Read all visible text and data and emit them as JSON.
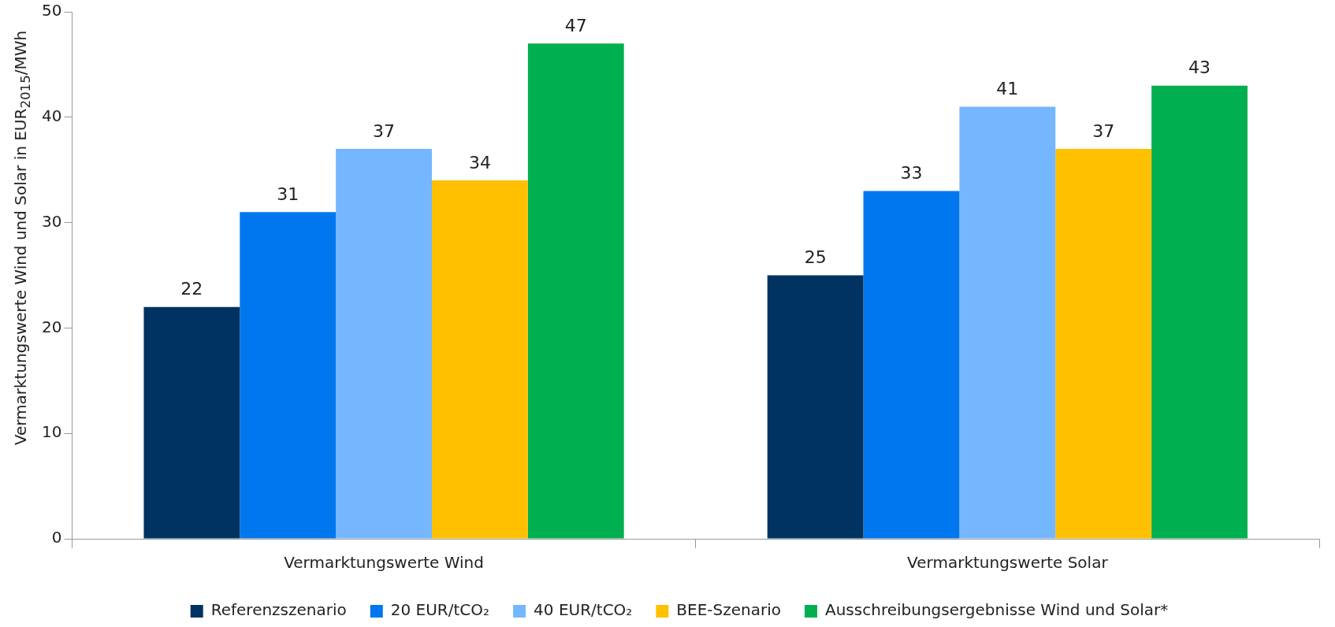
{
  "chart_data": {
    "type": "bar",
    "ylabel": "Vermarktungswerte Wind und Solar in EUR$_{2015}$/MWh",
    "categories": [
      "Vermarktungswerte Wind",
      "Vermarktungswerte Solar"
    ],
    "series": [
      {
        "name": "Referenzszenario",
        "color": "#003361",
        "values": [
          22,
          25
        ]
      },
      {
        "name": "20 EUR/tCO₂",
        "color": "#0077ee",
        "values": [
          31,
          33
        ]
      },
      {
        "name": "40 EUR/tCO₂",
        "color": "#74b7ff",
        "values": [
          37,
          41
        ]
      },
      {
        "name": "BEE-Szenario",
        "color": "#ffc000",
        "values": [
          34,
          37
        ]
      },
      {
        "name": "Ausschreibungsergebnisse Wind und Solar*",
        "color": "#00b050",
        "values": [
          47,
          43
        ]
      }
    ],
    "ylim": [
      0,
      50
    ],
    "yticks": [
      0,
      10,
      20,
      30,
      40,
      50
    ],
    "data_labels": true,
    "legend": "bottom"
  }
}
